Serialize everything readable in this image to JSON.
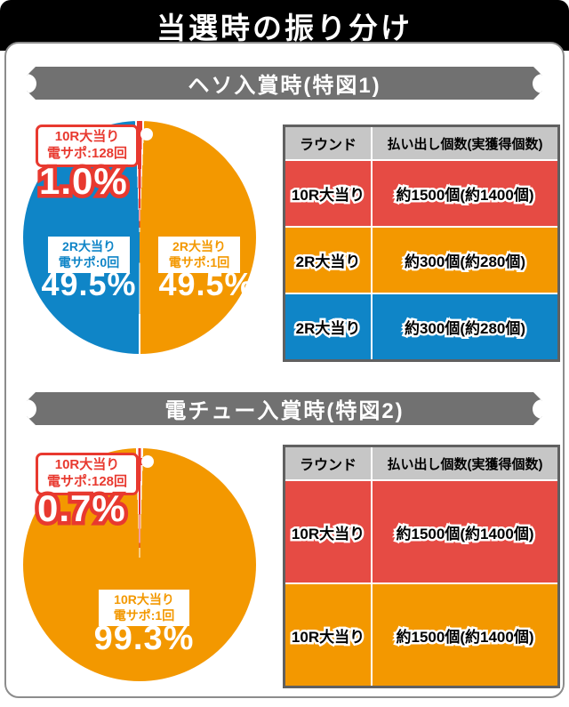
{
  "title": "当選時の振り分け",
  "colors": {
    "pie_red": "#e8392f",
    "pie_orange": "#f39800",
    "pie_blue": "#0f85c7",
    "table_row_red": "#e64b44",
    "table_header_gray": "#c6c6c6",
    "banner_gray": "#717171",
    "band_black": "#000000"
  },
  "sections": [
    {
      "banner": "ヘソ入賞時(特図1)",
      "callout": {
        "line1": "10R大当り",
        "line2": "電サポ:128回",
        "pct": "1.0%"
      },
      "labels": [
        {
          "line1": "2R大当り",
          "line2": "電サポ:0回",
          "pct": "49.5%"
        },
        {
          "line1": "2R大当り",
          "line2": "電サポ:1回",
          "pct": "49.5%"
        }
      ],
      "table": {
        "headers": [
          "ラウンド",
          "払い出し個数(実獲得個数)"
        ],
        "rows": [
          {
            "round": "10R大当り",
            "payout": "約1500個(約1400個)"
          },
          {
            "round": "2R大当り",
            "payout": "約300個(約280個)"
          },
          {
            "round": "2R大当り",
            "payout": "約300個(約280個)"
          }
        ]
      }
    },
    {
      "banner": "電チュー入賞時(特図2)",
      "callout": {
        "line1": "10R大当り",
        "line2": "電サポ:128回",
        "pct": "0.7%"
      },
      "labels": [
        {
          "line1": "10R大当り",
          "line2": "電サポ:1回",
          "pct": "99.3%"
        }
      ],
      "table": {
        "headers": [
          "ラウンド",
          "払い出し個数(実獲得個数)"
        ],
        "rows": [
          {
            "round": "10R大当り",
            "payout": "約1500個(約1400個)"
          },
          {
            "round": "10R大当り",
            "payout": "約1500個(約1400個)"
          }
        ]
      }
    }
  ],
  "chart_data": [
    {
      "type": "pie",
      "title": "ヘソ入賞時(特図1)",
      "slices": [
        {
          "label": "10R大当り 電サポ:128回",
          "value": 1.0,
          "color": "#e8392f"
        },
        {
          "label": "2R大当り 電サポ:1回",
          "value": 49.5,
          "color": "#f39800"
        },
        {
          "label": "2R大当り 電サポ:0回",
          "value": 49.5,
          "color": "#0f85c7"
        }
      ]
    },
    {
      "type": "pie",
      "title": "電チュー入賞時(特図2)",
      "slices": [
        {
          "label": "10R大当り 電サポ:128回",
          "value": 0.7,
          "color": "#e8392f"
        },
        {
          "label": "10R大当り 電サポ:1回",
          "value": 99.3,
          "color": "#f39800"
        }
      ]
    }
  ]
}
